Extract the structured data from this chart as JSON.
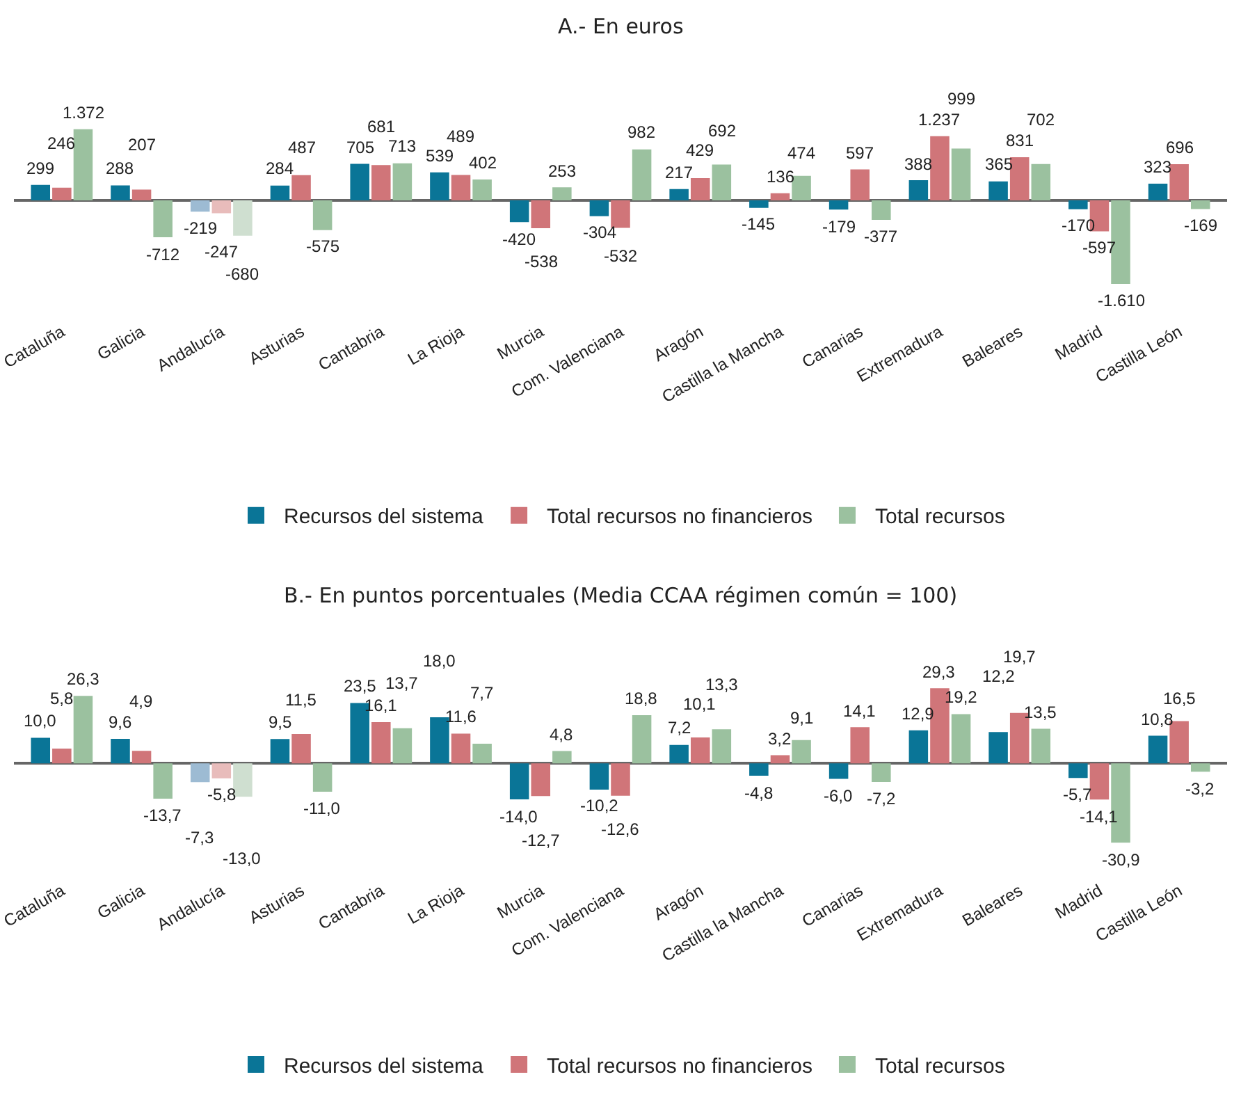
{
  "chart_data": [
    {
      "type": "bar",
      "title": "A.- En euros",
      "legend": "bottom",
      "categories": [
        "Cataluña",
        "Galicia",
        "Andalucía",
        "Asturias",
        "Cantabria",
        "La Rioja",
        "Murcia",
        "Com. Valenciana",
        "Aragón",
        "Castilla la Mancha",
        "Canarias",
        "Extremadura",
        "Baleares",
        "Madrid",
        "Castilla León"
      ],
      "series": [
        {
          "name": "Recursos del sistema",
          "color": "#0a7597",
          "colors": [
            "#0a7597",
            "#0a7597",
            "#9dbbd3",
            "#0a7597",
            "#0a7597",
            "#0a7597",
            "#0a7597",
            "#0a7597",
            "#0a7597",
            "#0a7597",
            "#0a7597",
            "#0a7597",
            "#0a7597",
            "#0a7597",
            "#0a7597"
          ],
          "values": [
            299,
            288,
            -219,
            284,
            705,
            539,
            -420,
            -304,
            217,
            -145,
            -179,
            388,
            365,
            -170,
            323
          ],
          "value_labels": [
            "299",
            "288",
            "-219",
            "284",
            "705",
            "539",
            "-420",
            "-304",
            "217",
            "-145",
            "-179",
            "388",
            "365",
            "-170",
            "323"
          ]
        },
        {
          "name": "Total recursos no financieros",
          "color": "#d07579",
          "colors": [
            "#d07579",
            "#d07579",
            "#e8bcbb",
            "#d07579",
            "#d07579",
            "#d07579",
            "#d07579",
            "#d07579",
            "#d07579",
            "#d07579",
            "#d07579",
            "#d07579",
            "#d07579",
            "#d07579",
            "#d07579"
          ],
          "values": [
            246,
            207,
            -247,
            487,
            681,
            489,
            -538,
            -532,
            429,
            136,
            597,
            1237,
            831,
            -597,
            696
          ],
          "value_labels": [
            "246",
            "207",
            "-247",
            "487",
            "681",
            "489",
            "-538",
            "-532",
            "429",
            "136",
            "597",
            "1.237",
            "831",
            "-597",
            "696"
          ]
        },
        {
          "name": "Total recursos",
          "color": "#9bc19f",
          "colors": [
            "#9bc19f",
            "#9bc19f",
            "#cfdfd0",
            "#9bc19f",
            "#9bc19f",
            "#9bc19f",
            "#9bc19f",
            "#9bc19f",
            "#9bc19f",
            "#9bc19f",
            "#9bc19f",
            "#9bc19f",
            "#9bc19f",
            "#9bc19f",
            "#9bc19f"
          ],
          "values": [
            1372,
            -712,
            -680,
            -575,
            713,
            402,
            253,
            982,
            692,
            474,
            -377,
            999,
            702,
            -1610,
            -169
          ],
          "value_labels": [
            "1.372",
            "-712",
            "-680",
            "-575",
            "713",
            "402",
            "253",
            "982",
            "692",
            "474",
            "-377",
            "999",
            "702",
            "-1.610",
            "-169"
          ]
        }
      ]
    },
    {
      "type": "bar",
      "title": "B.- En puntos porcentuales (Media CCAA régimen común = 100)",
      "legend": "bottom",
      "categories": [
        "Cataluña",
        "Galicia",
        "Andalucía",
        "Asturias",
        "Cantabria",
        "La Rioja",
        "Murcia",
        "Com. Valenciana",
        "Aragón",
        "Castilla la Mancha",
        "Canarias",
        "Extremadura",
        "Baleares",
        "Madrid",
        "Castilla León"
      ],
      "series": [
        {
          "name": "Recursos del sistema",
          "color": "#0a7597",
          "colors": [
            "#0a7597",
            "#0a7597",
            "#9dbbd3",
            "#0a7597",
            "#0a7597",
            "#0a7597",
            "#0a7597",
            "#0a7597",
            "#0a7597",
            "#0a7597",
            "#0a7597",
            "#0a7597",
            "#0a7597",
            "#0a7597",
            "#0a7597"
          ],
          "values": [
            10.0,
            9.6,
            -7.3,
            9.5,
            23.5,
            18.0,
            -14.0,
            -10.2,
            7.2,
            -4.8,
            -6.0,
            12.9,
            12.2,
            -5.7,
            10.8
          ],
          "value_labels": [
            "10,0",
            "9,6",
            "-7,3",
            "9,5",
            "23,5",
            "18,0",
            "-14,0",
            "-10,2",
            "7,2",
            "-4,8",
            "-6,0",
            "12,9",
            "12,2",
            "-5,7",
            "10,8"
          ]
        },
        {
          "name": "Total recursos no financieros",
          "color": "#d07579",
          "colors": [
            "#d07579",
            "#d07579",
            "#e8bcbb",
            "#d07579",
            "#d07579",
            "#d07579",
            "#d07579",
            "#d07579",
            "#d07579",
            "#d07579",
            "#d07579",
            "#d07579",
            "#d07579",
            "#d07579",
            "#d07579"
          ],
          "values": [
            5.8,
            4.9,
            -5.8,
            11.5,
            16.1,
            11.6,
            -12.7,
            -12.6,
            10.1,
            3.2,
            14.1,
            29.3,
            19.7,
            -14.1,
            16.5
          ],
          "value_labels": [
            "5,8",
            "4,9",
            "-5,8",
            "11,5",
            "16,1",
            "11,6",
            "-12,7",
            "-12,6",
            "10,1",
            "3,2",
            "14,1",
            "29,3",
            "19,7",
            "-14,1",
            "16,5"
          ]
        },
        {
          "name": "Total recursos",
          "color": "#9bc19f",
          "colors": [
            "#9bc19f",
            "#9bc19f",
            "#cfdfd0",
            "#9bc19f",
            "#9bc19f",
            "#9bc19f",
            "#9bc19f",
            "#9bc19f",
            "#9bc19f",
            "#9bc19f",
            "#9bc19f",
            "#9bc19f",
            "#9bc19f",
            "#9bc19f",
            "#9bc19f"
          ],
          "values": [
            26.3,
            -13.7,
            -13.0,
            -11.0,
            13.7,
            7.7,
            4.8,
            18.8,
            13.3,
            9.1,
            -7.2,
            19.2,
            13.5,
            -30.9,
            -3.2
          ],
          "value_labels": [
            "26,3",
            "-13,7",
            "-13,0",
            "-11,0",
            "13,7",
            "7,7",
            "4,8",
            "18,8",
            "13,3",
            "9,1",
            "-7,2",
            "19,2",
            "13,5",
            "-30,9",
            "-3,2"
          ]
        }
      ]
    }
  ]
}
